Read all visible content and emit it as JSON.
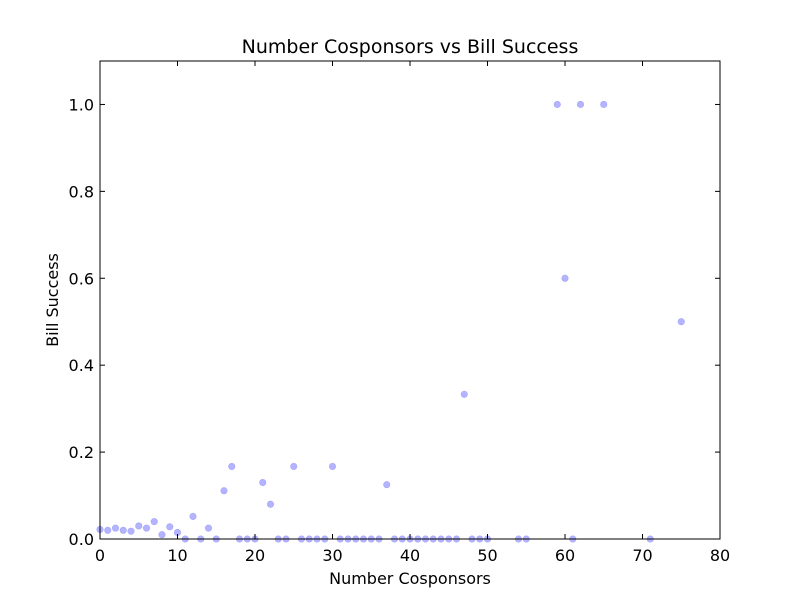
{
  "chart_data": {
    "type": "scatter",
    "title": "Number Cosponsors vs Bill Success",
    "xlabel": "Number Cosponsors",
    "ylabel": "Bill Success",
    "xlim": [
      0,
      80
    ],
    "ylim": [
      0,
      1.1
    ],
    "xticks": [
      0,
      10,
      20,
      30,
      40,
      50,
      60,
      70,
      80
    ],
    "yticks": [
      0.0,
      0.2,
      0.4,
      0.6,
      0.8,
      1.0
    ],
    "xtick_labels": [
      "0",
      "10",
      "20",
      "30",
      "40",
      "50",
      "60",
      "70",
      "80"
    ],
    "ytick_labels": [
      "0.0",
      "0.2",
      "0.4",
      "0.6",
      "0.8",
      "1.0"
    ],
    "grid": false,
    "marker_color": "#9999ff",
    "points": [
      {
        "x": 0,
        "y": 0.022
      },
      {
        "x": 1,
        "y": 0.02
      },
      {
        "x": 2,
        "y": 0.025
      },
      {
        "x": 3,
        "y": 0.02
      },
      {
        "x": 4,
        "y": 0.018
      },
      {
        "x": 5,
        "y": 0.03
      },
      {
        "x": 6,
        "y": 0.025
      },
      {
        "x": 7,
        "y": 0.04
      },
      {
        "x": 8,
        "y": 0.01
      },
      {
        "x": 9,
        "y": 0.028
      },
      {
        "x": 10,
        "y": 0.015
      },
      {
        "x": 11,
        "y": 0.0
      },
      {
        "x": 12,
        "y": 0.052
      },
      {
        "x": 13,
        "y": 0.0
      },
      {
        "x": 14,
        "y": 0.025
      },
      {
        "x": 15,
        "y": 0.0
      },
      {
        "x": 16,
        "y": 0.111
      },
      {
        "x": 17,
        "y": 0.167
      },
      {
        "x": 18,
        "y": 0.0
      },
      {
        "x": 19,
        "y": 0.0
      },
      {
        "x": 20,
        "y": 0.0
      },
      {
        "x": 21,
        "y": 0.13
      },
      {
        "x": 22,
        "y": 0.08
      },
      {
        "x": 23,
        "y": 0.0
      },
      {
        "x": 24,
        "y": 0.0
      },
      {
        "x": 25,
        "y": 0.167
      },
      {
        "x": 26,
        "y": 0.0
      },
      {
        "x": 27,
        "y": 0.0
      },
      {
        "x": 28,
        "y": 0.0
      },
      {
        "x": 29,
        "y": 0.0
      },
      {
        "x": 30,
        "y": 0.167
      },
      {
        "x": 31,
        "y": 0.0
      },
      {
        "x": 32,
        "y": 0.0
      },
      {
        "x": 33,
        "y": 0.0
      },
      {
        "x": 34,
        "y": 0.0
      },
      {
        "x": 35,
        "y": 0.0
      },
      {
        "x": 36,
        "y": 0.0
      },
      {
        "x": 37,
        "y": 0.125
      },
      {
        "x": 38,
        "y": 0.0
      },
      {
        "x": 39,
        "y": 0.0
      },
      {
        "x": 40,
        "y": 0.0
      },
      {
        "x": 41,
        "y": 0.0
      },
      {
        "x": 42,
        "y": 0.0
      },
      {
        "x": 43,
        "y": 0.0
      },
      {
        "x": 44,
        "y": 0.0
      },
      {
        "x": 45,
        "y": 0.0
      },
      {
        "x": 46,
        "y": 0.0
      },
      {
        "x": 47,
        "y": 0.333
      },
      {
        "x": 48,
        "y": 0.0
      },
      {
        "x": 49,
        "y": 0.0
      },
      {
        "x": 50,
        "y": 0.0
      },
      {
        "x": 54,
        "y": 0.0
      },
      {
        "x": 55,
        "y": 0.0
      },
      {
        "x": 59,
        "y": 1.0
      },
      {
        "x": 60,
        "y": 0.6
      },
      {
        "x": 61,
        "y": 0.0
      },
      {
        "x": 62,
        "y": 1.0
      },
      {
        "x": 65,
        "y": 1.0
      },
      {
        "x": 71,
        "y": 0.0
      },
      {
        "x": 75,
        "y": 0.5
      }
    ]
  }
}
